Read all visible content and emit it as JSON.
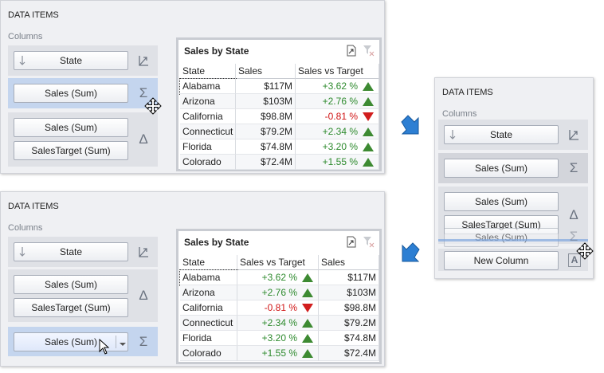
{
  "panels": [
    {
      "header": "DATA ITEMS",
      "section": "Columns",
      "groups": [
        {
          "buttons": [
            "State"
          ]
        },
        {
          "buttons": [
            "Sales (Sum)"
          ],
          "icon": "Σ"
        },
        {
          "buttons": [
            "Sales (Sum)",
            "SalesTarget (Sum)"
          ],
          "icon": "Δ"
        }
      ],
      "grid": {
        "title": "Sales by State",
        "columns": [
          "State",
          "Sales",
          "Sales vs Target"
        ],
        "rows": [
          [
            "Alabama",
            "$117M",
            "+3.62 %"
          ],
          [
            "Arizona",
            "$103M",
            "+2.76 %"
          ],
          [
            "California",
            "$98.8M",
            "-0.81 %"
          ],
          [
            "Connecticut",
            "$79.2M",
            "+2.34 %"
          ],
          [
            "Florida",
            "$74.8M",
            "+3.20 %"
          ],
          [
            "Colorado",
            "$72.4M",
            "+1.55 %"
          ]
        ]
      }
    },
    {
      "header": "DATA ITEMS",
      "section": "Columns",
      "groups": [
        {
          "buttons": [
            "State"
          ]
        },
        {
          "buttons": [
            "Sales (Sum)"
          ],
          "icon": "Σ"
        },
        {
          "buttons": [
            "Sales (Sum)",
            "SalesTarget (Sum)"
          ],
          "icon": "Δ"
        },
        {
          "buttons": [
            "Sales (Sum)"
          ],
          "icon": "Σ"
        },
        {
          "buttons": [
            "New Column"
          ],
          "icon": "A"
        }
      ]
    },
    {
      "header": "DATA ITEMS",
      "section": "Columns",
      "groups": [
        {
          "buttons": [
            "State"
          ]
        },
        {
          "buttons": [
            "Sales (Sum)",
            "SalesTarget (Sum)"
          ],
          "icon": "Δ"
        },
        {
          "buttons": [
            "Sales (Sum)"
          ],
          "icon": "Σ"
        }
      ],
      "grid": {
        "title": "Sales by State",
        "columns": [
          "State",
          "Sales vs Target",
          "Sales"
        ],
        "rows": [
          [
            "Alabama",
            "+3.62 %",
            "$117M"
          ],
          [
            "Arizona",
            "+2.76 %",
            "$103M"
          ],
          [
            "California",
            "-0.81 %",
            "$98.8M"
          ],
          [
            "Connecticut",
            "+2.34 %",
            "$79.2M"
          ],
          [
            "Florida",
            "+3.20 %",
            "$74.8M"
          ],
          [
            "Colorado",
            "+1.55 %",
            "$72.4M"
          ]
        ]
      }
    }
  ]
}
